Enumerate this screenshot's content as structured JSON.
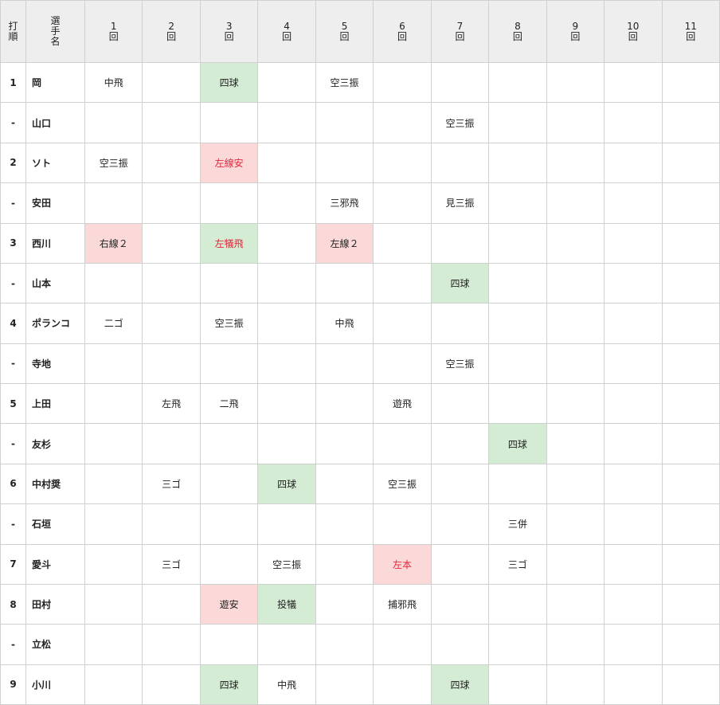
{
  "table": {
    "header": [
      "打\n順",
      "選\n手\n名",
      "1\n回",
      "2\n回",
      "3\n回",
      "4\n回",
      "5\n回",
      "6\n回",
      "7\n回",
      "8\n回",
      "9\n回",
      "10\n回",
      "11\n回"
    ],
    "rows": [
      {
        "order": "1",
        "name": "岡",
        "innings": [
          "中飛",
          null,
          {
            "text": "四球",
            "fill": "#d5ecd4"
          },
          null,
          "空三振",
          null,
          null,
          null,
          null,
          null,
          null
        ]
      },
      {
        "order": "-",
        "name": "山口",
        "innings": [
          null,
          null,
          null,
          null,
          null,
          null,
          "空三振",
          null,
          null,
          null,
          null
        ]
      },
      {
        "order": "2",
        "name": "ソト",
        "innings": [
          "空三振",
          null,
          {
            "text": "左線安",
            "fill": "#fcd9d9",
            "color": "#e0283c"
          },
          null,
          null,
          null,
          null,
          null,
          null,
          null,
          null
        ]
      },
      {
        "order": "-",
        "name": "安田",
        "innings": [
          null,
          null,
          null,
          null,
          "三邪飛",
          null,
          "見三振",
          null,
          null,
          null,
          null
        ]
      },
      {
        "order": "3",
        "name": "西川",
        "innings": [
          {
            "text": "右線２",
            "fill": "#fcd9d9"
          },
          null,
          {
            "text": "左犠飛",
            "fill": "#d5ecd4",
            "color": "#e0283c"
          },
          null,
          {
            "text": "左線２",
            "fill": "#fcd9d9"
          },
          null,
          null,
          null,
          null,
          null,
          null
        ]
      },
      {
        "order": "-",
        "name": "山本",
        "innings": [
          null,
          null,
          null,
          null,
          null,
          null,
          {
            "text": "四球",
            "fill": "#d5ecd4"
          },
          null,
          null,
          null,
          null
        ]
      },
      {
        "order": "4",
        "name": "ポランコ",
        "innings": [
          "二ゴ",
          null,
          "空三振",
          null,
          "中飛",
          null,
          null,
          null,
          null,
          null,
          null
        ]
      },
      {
        "order": "-",
        "name": "寺地",
        "innings": [
          null,
          null,
          null,
          null,
          null,
          null,
          "空三振",
          null,
          null,
          null,
          null
        ]
      },
      {
        "order": "5",
        "name": "上田",
        "innings": [
          null,
          "左飛",
          "二飛",
          null,
          null,
          "遊飛",
          null,
          null,
          null,
          null,
          null
        ]
      },
      {
        "order": "-",
        "name": "友杉",
        "innings": [
          null,
          null,
          null,
          null,
          null,
          null,
          null,
          {
            "text": "四球",
            "fill": "#d5ecd4"
          },
          null,
          null,
          null
        ]
      },
      {
        "order": "6",
        "name": "中村奨",
        "innings": [
          null,
          "三ゴ",
          null,
          {
            "text": "四球",
            "fill": "#d5ecd4"
          },
          null,
          "空三振",
          null,
          null,
          null,
          null,
          null
        ]
      },
      {
        "order": "-",
        "name": "石垣",
        "innings": [
          null,
          null,
          null,
          null,
          null,
          null,
          null,
          "三併",
          null,
          null,
          null
        ]
      },
      {
        "order": "7",
        "name": "愛斗",
        "innings": [
          null,
          "三ゴ",
          null,
          "空三振",
          null,
          {
            "text": "左本",
            "fill": "#fcd9d9",
            "color": "#e0283c"
          },
          null,
          "三ゴ",
          null,
          null,
          null
        ]
      },
      {
        "order": "8",
        "name": "田村",
        "innings": [
          null,
          null,
          {
            "text": "遊安",
            "fill": "#fcd9d9"
          },
          {
            "text": "投犠",
            "fill": "#d5ecd4"
          },
          null,
          "捕邪飛",
          null,
          null,
          null,
          null,
          null
        ]
      },
      {
        "order": "-",
        "name": "立松",
        "innings": [
          null,
          null,
          null,
          null,
          null,
          null,
          null,
          null,
          null,
          null,
          null
        ]
      },
      {
        "order": "9",
        "name": "小川",
        "innings": [
          null,
          null,
          {
            "text": "四球",
            "fill": "#d5ecd4"
          },
          "中飛",
          null,
          null,
          {
            "text": "四球",
            "fill": "#d5ecd4"
          },
          null,
          null,
          null,
          null
        ]
      }
    ]
  }
}
